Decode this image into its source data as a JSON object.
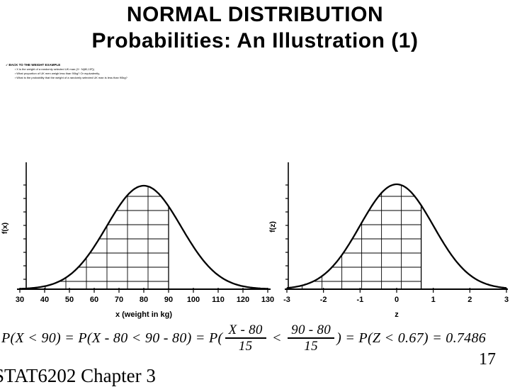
{
  "colors": {
    "ink": "#000000",
    "background": "#ffffff"
  },
  "slide": {
    "title_line1": "NORMAL DISTRIBUTION",
    "title_line2": "Probabilities: An Illustration (1)",
    "footer": "STAT6202 Chapter 3",
    "page_number": "17"
  },
  "notes": {
    "heading_marker": "✓",
    "heading": "BACK TO THE WEIGHT EXAMPLE",
    "bullet_marker": "▪",
    "bullets": [
      "X is the weight of a randomly selected UK man (X~ N(80,15²))",
      "What proportion of UK men weigh less than 90kg? Or equivalently,",
      "What is the probability that the weight of a randomly selected UK man is less than 90kg?"
    ]
  },
  "formula": {
    "prefix": "P(X < 90) = P(X - 80 < 90 - 80) = P(",
    "frac1_num": "X - 80",
    "frac1_den": "15",
    "middle": " < ",
    "frac2_num": "90 - 80",
    "frac2_den": "15",
    "suffix": ") = P(Z < 0.67) = 0.7486"
  },
  "chart_data": [
    {
      "type": "line",
      "curve": "normal-pdf",
      "title": "",
      "xlabel": "x (weight in kg)",
      "ylabel": "f(x)",
      "mean": 80,
      "sd": 15,
      "xlim": [
        30,
        130
      ],
      "x_ticks": [
        30,
        40,
        50,
        60,
        70,
        80,
        90,
        100,
        110,
        120,
        130
      ],
      "grid": false,
      "shaded_region": {
        "x_min": null,
        "x_max": 90,
        "fill": "crosshatch-grid"
      },
      "shaded_area_probability": 0.7486
    },
    {
      "type": "line",
      "curve": "normal-pdf",
      "title": "",
      "xlabel": "z",
      "ylabel": "f(z)",
      "mean": 0,
      "sd": 1,
      "xlim": [
        -3,
        3
      ],
      "x_ticks": [
        -3,
        -2,
        -1,
        0,
        1,
        2,
        3
      ],
      "grid": false,
      "shaded_region": {
        "x_min": null,
        "x_max": 0.67,
        "fill": "crosshatch-grid"
      },
      "shaded_area_probability": 0.7486
    }
  ]
}
